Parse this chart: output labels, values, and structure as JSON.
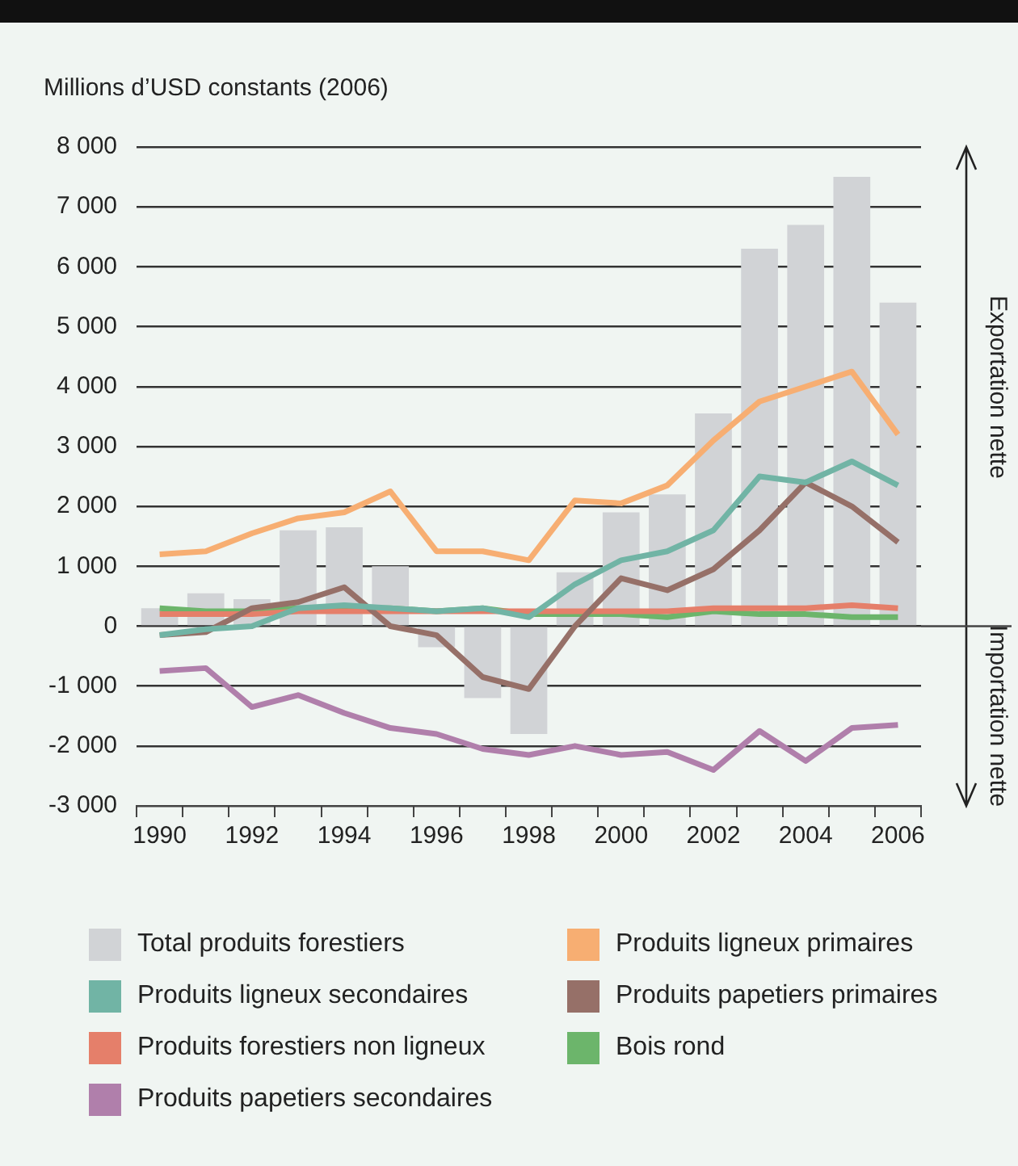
{
  "chart_data": {
    "type": "line",
    "ylabel": "Millions d’USD constants (2006)",
    "categories": [
      "1990",
      null,
      "1992",
      null,
      "1994",
      null,
      "1996",
      null,
      "1998",
      null,
      "2000",
      null,
      "2002",
      null,
      "2004",
      null,
      "2006"
    ],
    "series": [
      {
        "name": "Total produits forestiers",
        "type": "bar",
        "color": "#d1d3d6",
        "values": [
          300,
          550,
          450,
          1600,
          1650,
          1000,
          -350,
          -1200,
          -1800,
          900,
          1900,
          2200,
          3550,
          6300,
          6700,
          7500,
          5400
        ]
      },
      {
        "name": "Produits ligneux primaires",
        "color": "#f7ae72",
        "values": [
          1200,
          1250,
          1550,
          1800,
          1900,
          2250,
          1250,
          1250,
          1100,
          2100,
          2050,
          2350,
          3100,
          3750,
          4000,
          4250,
          3200
        ]
      },
      {
        "name": "Produits ligneux secondaires",
        "color": "#71b4a5",
        "values": [
          -150,
          -50,
          0,
          300,
          350,
          300,
          250,
          300,
          150,
          700,
          1100,
          1250,
          1600,
          2500,
          2400,
          2750,
          2350
        ]
      },
      {
        "name": "Produits papetiers primaires",
        "color": "#967068",
        "values": [
          -150,
          -100,
          300,
          400,
          650,
          0,
          -150,
          -850,
          -1050,
          0,
          800,
          600,
          950,
          1600,
          2400,
          2000,
          1400
        ]
      },
      {
        "name": "Produits forestiers non ligneux",
        "color": "#e57f6a",
        "values": [
          200,
          200,
          200,
          250,
          250,
          250,
          250,
          250,
          250,
          250,
          250,
          250,
          300,
          300,
          300,
          350,
          300
        ]
      },
      {
        "name": "Bois rond",
        "color": "#6cb56b",
        "values": [
          300,
          250,
          250,
          300,
          300,
          300,
          250,
          300,
          200,
          200,
          200,
          150,
          250,
          200,
          200,
          150,
          150
        ]
      },
      {
        "name": "Produits papetiers secondaires",
        "color": "#b07fab",
        "values": [
          -750,
          -700,
          -1350,
          -1150,
          -1450,
          -1700,
          -1800,
          -2050,
          -2150,
          -2000,
          -2150,
          -2100,
          -2400,
          -1750,
          -2250,
          -1700,
          -1650
        ]
      }
    ],
    "ylim": [
      -3000,
      8000
    ],
    "yticks": [
      {
        "value": -3000,
        "label": "-3 000"
      },
      {
        "value": -2000,
        "label": "-2 000"
      },
      {
        "value": -1000,
        "label": "-1 000"
      },
      0,
      {
        "value": 1000,
        "label": "1 000"
      },
      {
        "value": 2000,
        "label": "2 000"
      },
      {
        "value": 3000,
        "label": "3 000"
      },
      {
        "value": 4000,
        "label": "4 000"
      },
      {
        "value": 5000,
        "label": "5 000"
      },
      {
        "value": 6000,
        "label": "6 000"
      },
      {
        "value": 7000,
        "label": "7 000"
      },
      {
        "value": 8000,
        "label": "8 000"
      }
    ],
    "grid": "y",
    "legend": "bottom",
    "marker": "none",
    "line_style": "solid",
    "annotations": [
      "Exportation nette",
      "Importation nette"
    ]
  }
}
